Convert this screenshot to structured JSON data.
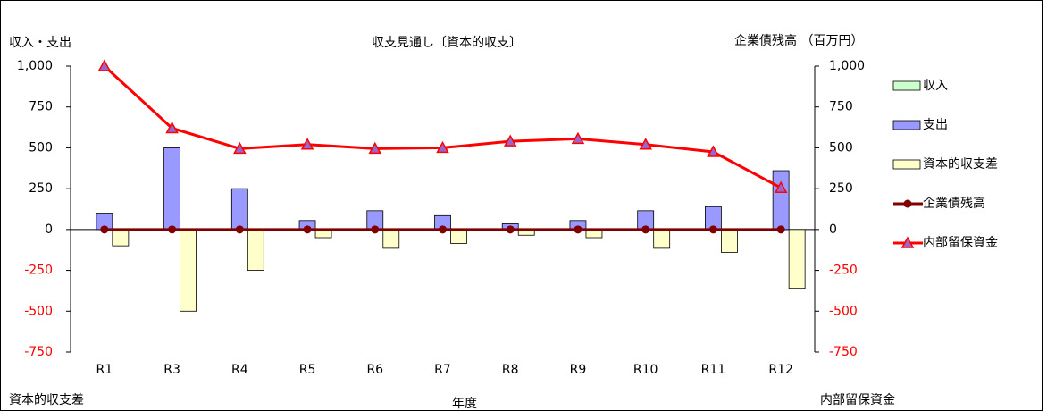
{
  "chart_data": {
    "type": "bar",
    "title": "収支見通し〔資本的収支〕",
    "ylabel": "収入・支出",
    "y2label": "企業債残高 （百万円）",
    "xlabel": "年度",
    "annotations": [
      "資本的収支差",
      "内部留保資金"
    ],
    "categories": [
      "R1",
      "R3",
      "R4",
      "R5",
      "R6",
      "R7",
      "R8",
      "R9",
      "R10",
      "R11",
      "R12"
    ],
    "series": [
      {
        "name": "収入",
        "type": "bar",
        "color": "#ccffcc",
        "values": [
          0,
          0,
          0,
          0,
          0,
          0,
          0,
          0,
          0,
          0,
          0
        ]
      },
      {
        "name": "支出",
        "type": "bar",
        "color": "#9999ff",
        "values": [
          100,
          500,
          250,
          55,
          115,
          85,
          35,
          55,
          115,
          140,
          360
        ]
      },
      {
        "name": "資本的収支差",
        "type": "bar",
        "color": "#ffffcc",
        "values": [
          -100,
          -500,
          -250,
          -50,
          -115,
          -85,
          -35,
          -50,
          -115,
          -140,
          -360
        ]
      },
      {
        "name": "企業債残高",
        "type": "line",
        "axis": "y2",
        "marker": "circle",
        "color": "#800000",
        "values": [
          0,
          0,
          0,
          0,
          0,
          0,
          0,
          0,
          0,
          0,
          0
        ]
      },
      {
        "name": "内部留保資金",
        "type": "line",
        "axis": "y2",
        "marker": "triangle",
        "color": "#ff0000",
        "values": [
          1000,
          620,
          495,
          520,
          495,
          500,
          540,
          555,
          520,
          475,
          255
        ]
      }
    ],
    "ylim": [
      -750,
      1000
    ],
    "yticks": [
      -750,
      -500,
      -250,
      0,
      250,
      500,
      750,
      {
        "value": 1000,
        "label": "1,000"
      }
    ],
    "y2lim": [
      -750,
      1000
    ],
    "y2ticks": [
      -750,
      -500,
      -250,
      0,
      250,
      500,
      750,
      {
        "value": 1000,
        "label": "1,000"
      }
    ],
    "negative_tick_color": "#ff0000",
    "legend": "right"
  }
}
